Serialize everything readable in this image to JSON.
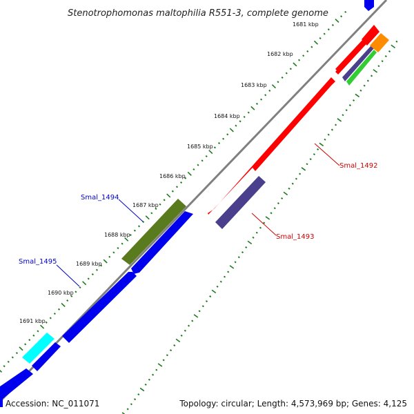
{
  "title": "Stenotrophomonas maltophilia R551-3, complete genome",
  "ticks": [
    "1681 kbp",
    "1682 kbp",
    "1683 kbp",
    "1684 kbp",
    "1685 kbp",
    "1686 kbp",
    "1687 kbp",
    "1688 kbp",
    "1689 kbp",
    "1690 kbp",
    "1691 kbp"
  ],
  "gene_labels": {
    "smal_1492": "Smal_1492",
    "smal_1493": "Smal_1493",
    "smal_1494": "Smal_1494",
    "smal_1495": "Smal_1495"
  },
  "footer": {
    "accession": "Accession: NC_011071",
    "summary": "Topology: circular; Length: 4,573,969 bp; Genes: 4,125"
  },
  "colors": {
    "backbone": "#808080",
    "tick_marks": "#1e7a1e",
    "red_gene": "#ff0000",
    "blue_gene": "#0000ee",
    "olive_gene": "#5a7a1e",
    "slate_gene": "#4a3f8c",
    "cyan_gene": "#00ffff",
    "orange_gene": "#ff8c00",
    "green_gene": "#33cc33",
    "label_blue": "#0000cc",
    "label_red": "#cc0000"
  }
}
